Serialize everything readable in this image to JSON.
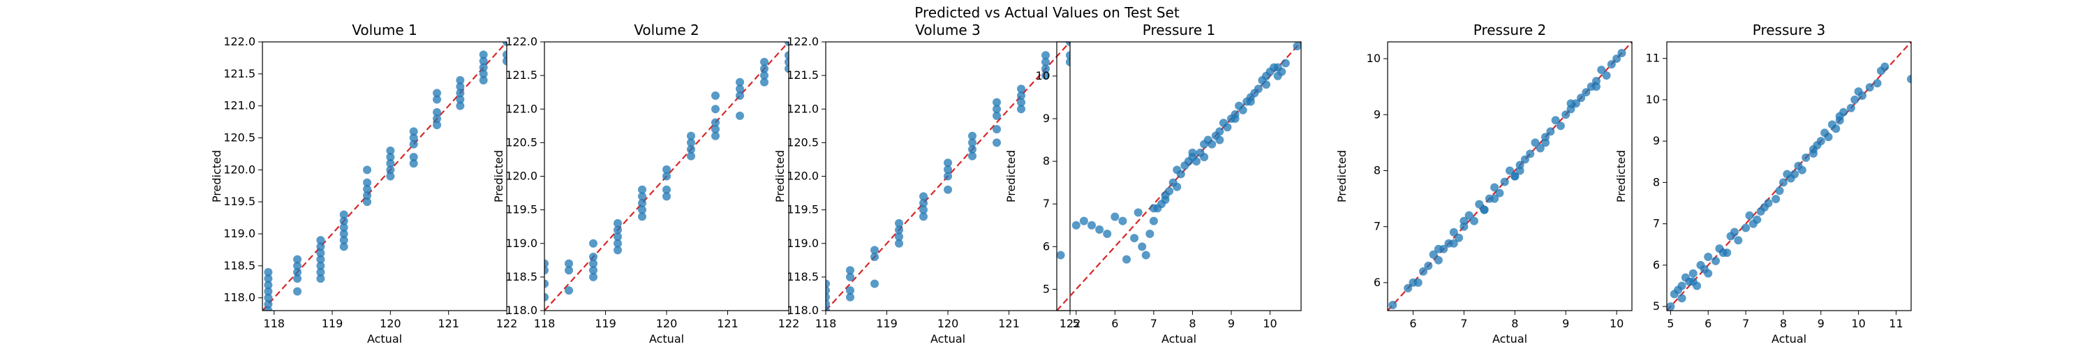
{
  "figure": {
    "title": "Predicted vs Actual Values on Test Set"
  },
  "colors": {
    "points": "#1f77b4",
    "reference_line": "#d62728"
  },
  "chart_data": [
    {
      "type": "scatter",
      "title": "Volume 1",
      "xlabel": "Actual",
      "ylabel": "Predicted",
      "xlim": [
        117.8,
        122.0
      ],
      "ylim": [
        117.8,
        122.0
      ],
      "xticks": [
        "118",
        "119",
        "120",
        "121",
        "122"
      ],
      "yticks": [
        "118.0",
        "118.5",
        "119.0",
        "119.5",
        "120.0",
        "120.5",
        "121.0",
        "121.5",
        "122.0"
      ],
      "reference_line": "y = x",
      "x": [
        117.9,
        117.9,
        117.9,
        117.9,
        117.9,
        117.9,
        117.9,
        118.4,
        118.4,
        118.4,
        118.4,
        118.4,
        118.8,
        118.8,
        118.8,
        118.8,
        118.8,
        118.8,
        118.8,
        119.2,
        119.2,
        119.2,
        119.2,
        119.2,
        119.2,
        119.6,
        119.6,
        119.6,
        119.6,
        119.6,
        120.0,
        120.0,
        120.0,
        120.0,
        120.0,
        120.4,
        120.4,
        120.4,
        120.4,
        120.4,
        120.8,
        120.8,
        120.8,
        120.8,
        120.8,
        121.2,
        121.2,
        121.2,
        121.2,
        121.2,
        121.6,
        121.6,
        121.6,
        121.6,
        121.6,
        122.0,
        122.0,
        122.0
      ],
      "y": [
        118.4,
        118.3,
        118.2,
        118.1,
        118.0,
        117.9,
        117.8,
        118.6,
        118.5,
        118.4,
        118.3,
        118.1,
        118.9,
        118.8,
        118.7,
        118.6,
        118.5,
        118.4,
        118.3,
        119.3,
        119.2,
        119.1,
        119.0,
        118.9,
        118.8,
        120.0,
        119.8,
        119.7,
        119.6,
        119.5,
        120.3,
        120.2,
        120.1,
        120.0,
        119.9,
        120.6,
        120.5,
        120.4,
        120.2,
        120.1,
        121.2,
        121.1,
        120.9,
        120.8,
        120.7,
        121.4,
        121.3,
        121.2,
        121.1,
        121.0,
        121.8,
        121.7,
        121.6,
        121.5,
        121.4,
        122.0,
        121.8,
        121.7
      ]
    },
    {
      "type": "scatter",
      "title": "Volume 2",
      "xlabel": "Actual",
      "ylabel": "Predicted",
      "xlim": [
        118.0,
        122.0
      ],
      "ylim": [
        118.0,
        122.0
      ],
      "xticks": [
        "118",
        "119",
        "120",
        "121",
        "122"
      ],
      "yticks": [
        "118.0",
        "118.5",
        "119.0",
        "119.5",
        "120.0",
        "120.5",
        "121.0",
        "121.5",
        "122.0"
      ],
      "reference_line": "y = x",
      "x": [
        118.0,
        118.0,
        118.0,
        118.0,
        118.4,
        118.4,
        118.4,
        118.8,
        118.8,
        118.8,
        118.8,
        118.8,
        119.2,
        119.2,
        119.2,
        119.2,
        119.2,
        119.6,
        119.6,
        119.6,
        119.6,
        119.6,
        120.0,
        120.0,
        120.0,
        120.0,
        120.4,
        120.4,
        120.4,
        120.4,
        120.8,
        120.8,
        120.8,
        120.8,
        120.8,
        121.2,
        121.2,
        121.2,
        121.2,
        121.6,
        121.6,
        121.6,
        121.6,
        122.0,
        122.0,
        122.0,
        122.0
      ],
      "y": [
        118.7,
        118.6,
        118.4,
        118.2,
        118.7,
        118.6,
        118.3,
        119.0,
        118.8,
        118.7,
        118.6,
        118.5,
        119.3,
        119.1,
        119.0,
        118.9,
        119.2,
        119.8,
        119.7,
        119.6,
        119.5,
        119.4,
        120.1,
        120.0,
        119.8,
        119.7,
        120.4,
        120.3,
        120.6,
        120.5,
        121.2,
        121.0,
        120.8,
        120.7,
        120.6,
        121.4,
        121.3,
        121.2,
        120.9,
        121.7,
        121.6,
        121.5,
        121.4,
        122.0,
        121.8,
        121.7,
        121.6
      ]
    },
    {
      "type": "scatter",
      "title": "Volume 3",
      "xlabel": "Actual",
      "ylabel": "Predicted",
      "xlim": [
        118.0,
        122.0
      ],
      "ylim": [
        118.0,
        122.0
      ],
      "xticks": [
        "118",
        "119",
        "120",
        "121",
        "122"
      ],
      "yticks": [
        "118.0",
        "118.5",
        "119.0",
        "119.5",
        "120.0",
        "120.5",
        "121.0",
        "121.5",
        "122.0"
      ],
      "reference_line": "y = x",
      "x": [
        118.0,
        118.0,
        118.0,
        118.0,
        118.0,
        118.4,
        118.4,
        118.4,
        118.4,
        118.8,
        118.8,
        118.8,
        119.2,
        119.2,
        119.2,
        119.2,
        119.6,
        119.6,
        119.6,
        119.6,
        120.0,
        120.0,
        120.0,
        120.0,
        120.4,
        120.4,
        120.4,
        120.4,
        120.8,
        120.8,
        120.8,
        120.8,
        120.8,
        121.2,
        121.2,
        121.2,
        121.2,
        121.6,
        121.6,
        121.6,
        121.6,
        122.0,
        122.0,
        122.0
      ],
      "y": [
        118.4,
        118.3,
        118.2,
        118.1,
        118.0,
        118.6,
        118.5,
        118.3,
        118.2,
        118.9,
        118.8,
        118.4,
        119.3,
        119.2,
        119.1,
        119.0,
        119.7,
        119.6,
        119.5,
        119.4,
        120.2,
        120.1,
        120.0,
        119.8,
        120.5,
        120.4,
        120.3,
        120.6,
        121.1,
        121.0,
        120.9,
        120.7,
        120.5,
        121.3,
        121.2,
        121.1,
        121.0,
        121.8,
        121.7,
        121.6,
        121.5,
        122.0,
        121.8,
        121.7
      ]
    },
    {
      "type": "scatter",
      "title": "Pressure 1",
      "xlabel": "Actual",
      "ylabel": "Predicted",
      "xlim": [
        4.5,
        10.8
      ],
      "ylim": [
        4.5,
        10.8
      ],
      "xticks": [
        "5",
        "6",
        "7",
        "8",
        "9",
        "10"
      ],
      "yticks": [
        "5",
        "6",
        "7",
        "8",
        "9",
        "10"
      ],
      "reference_line": "y = x",
      "x": [
        4.6,
        5.0,
        5.2,
        5.4,
        5.6,
        5.8,
        6.0,
        6.2,
        6.3,
        6.5,
        6.6,
        6.8,
        6.9,
        7.0,
        7.1,
        7.2,
        7.3,
        7.4,
        7.5,
        7.6,
        7.7,
        7.8,
        7.9,
        8.0,
        8.1,
        8.2,
        8.3,
        8.4,
        8.5,
        8.6,
        8.7,
        8.8,
        8.9,
        9.0,
        9.1,
        9.2,
        9.3,
        9.4,
        9.5,
        9.6,
        9.7,
        9.8,
        9.9,
        10.0,
        10.1,
        10.2,
        10.3,
        10.4,
        10.7,
        7.0,
        7.3,
        7.6,
        8.0,
        8.3,
        8.7,
        9.1,
        9.5,
        9.9,
        10.2,
        6.7
      ],
      "y": [
        5.8,
        6.5,
        6.6,
        6.5,
        6.4,
        6.3,
        6.7,
        6.6,
        5.7,
        6.2,
        6.8,
        5.8,
        6.3,
        6.6,
        6.9,
        7.0,
        7.1,
        7.3,
        7.5,
        7.4,
        7.7,
        7.9,
        8.0,
        8.1,
        8.0,
        8.2,
        8.4,
        8.5,
        8.4,
        8.6,
        8.7,
        8.9,
        8.8,
        9.0,
        9.1,
        9.3,
        9.2,
        9.4,
        9.5,
        9.6,
        9.7,
        9.9,
        10.0,
        10.1,
        10.2,
        10.0,
        10.1,
        10.3,
        10.7,
        6.9,
        7.2,
        7.8,
        8.2,
        8.1,
        8.5,
        9.0,
        9.4,
        9.8,
        10.2,
        6.0
      ]
    },
    {
      "type": "scatter",
      "title": "Pressure 2",
      "xlabel": "Actual",
      "ylabel": "Predicted",
      "xlim": [
        5.5,
        10.3
      ],
      "ylim": [
        5.5,
        10.3
      ],
      "xticks": [
        "6",
        "7",
        "8",
        "9",
        "10"
      ],
      "yticks": [
        "6",
        "7",
        "8",
        "9",
        "10"
      ],
      "reference_line": "y = x",
      "x": [
        5.6,
        5.9,
        6.0,
        6.2,
        6.3,
        6.4,
        6.5,
        6.6,
        6.7,
        6.8,
        6.9,
        7.0,
        7.1,
        7.2,
        7.3,
        7.4,
        7.5,
        7.6,
        7.7,
        7.8,
        7.9,
        8.0,
        8.1,
        8.2,
        8.3,
        8.4,
        8.5,
        8.6,
        8.7,
        8.8,
        8.9,
        9.0,
        9.1,
        9.2,
        9.3,
        9.4,
        9.5,
        9.6,
        9.7,
        9.8,
        9.9,
        10.0,
        10.1,
        6.5,
        7.0,
        7.6,
        8.1,
        8.6,
        9.1,
        9.6,
        6.1,
        6.8,
        7.4,
        8.0
      ],
      "y": [
        5.6,
        5.9,
        6.0,
        6.2,
        6.3,
        6.5,
        6.4,
        6.6,
        6.7,
        6.9,
        6.8,
        7.0,
        7.2,
        7.1,
        7.4,
        7.3,
        7.5,
        7.7,
        7.6,
        7.8,
        8.0,
        7.9,
        8.1,
        8.2,
        8.3,
        8.5,
        8.4,
        8.6,
        8.7,
        8.9,
        8.8,
        9.0,
        9.1,
        9.2,
        9.3,
        9.4,
        9.5,
        9.6,
        9.8,
        9.7,
        9.9,
        10.0,
        10.1,
        6.6,
        7.1,
        7.5,
        8.0,
        8.5,
        9.2,
        9.5,
        6.0,
        6.7,
        7.3,
        7.9
      ]
    },
    {
      "type": "scatter",
      "title": "Pressure 3",
      "xlabel": "Actual",
      "ylabel": "Predicted",
      "xlim": [
        4.9,
        11.4
      ],
      "ylim": [
        4.9,
        11.4
      ],
      "xticks": [
        "5",
        "6",
        "7",
        "8",
        "9",
        "10",
        "11"
      ],
      "yticks": [
        "5",
        "6",
        "7",
        "8",
        "9",
        "10",
        "11"
      ],
      "reference_line": "y = x",
      "x": [
        5.0,
        5.1,
        5.2,
        5.3,
        5.4,
        5.5,
        5.6,
        5.7,
        5.8,
        5.9,
        6.0,
        6.2,
        6.3,
        6.5,
        6.6,
        6.8,
        7.0,
        7.1,
        7.2,
        7.3,
        7.5,
        7.6,
        7.8,
        7.9,
        8.0,
        8.2,
        8.3,
        8.4,
        8.5,
        8.6,
        8.8,
        8.9,
        9.0,
        9.1,
        9.2,
        9.3,
        9.4,
        9.5,
        9.6,
        9.8,
        9.9,
        10.0,
        10.1,
        10.3,
        10.5,
        10.6,
        10.7,
        11.4,
        6.0,
        6.7,
        7.4,
        8.1,
        8.8,
        9.5,
        5.3,
        5.6,
        6.4
      ],
      "y": [
        5.0,
        5.3,
        5.4,
        5.2,
        5.7,
        5.6,
        5.8,
        5.5,
        6.0,
        5.9,
        6.2,
        6.1,
        6.4,
        6.3,
        6.7,
        6.6,
        6.9,
        7.2,
        7.0,
        7.1,
        7.4,
        7.5,
        7.6,
        7.8,
        8.0,
        8.1,
        8.2,
        8.4,
        8.3,
        8.6,
        8.8,
        8.9,
        9.0,
        9.2,
        9.1,
        9.4,
        9.3,
        9.5,
        9.7,
        9.8,
        10.0,
        10.2,
        10.1,
        10.3,
        10.4,
        10.7,
        10.8,
        10.5,
        5.8,
        6.8,
        7.3,
        8.2,
        8.7,
        9.6,
        5.5,
        5.6,
        6.3
      ]
    }
  ]
}
